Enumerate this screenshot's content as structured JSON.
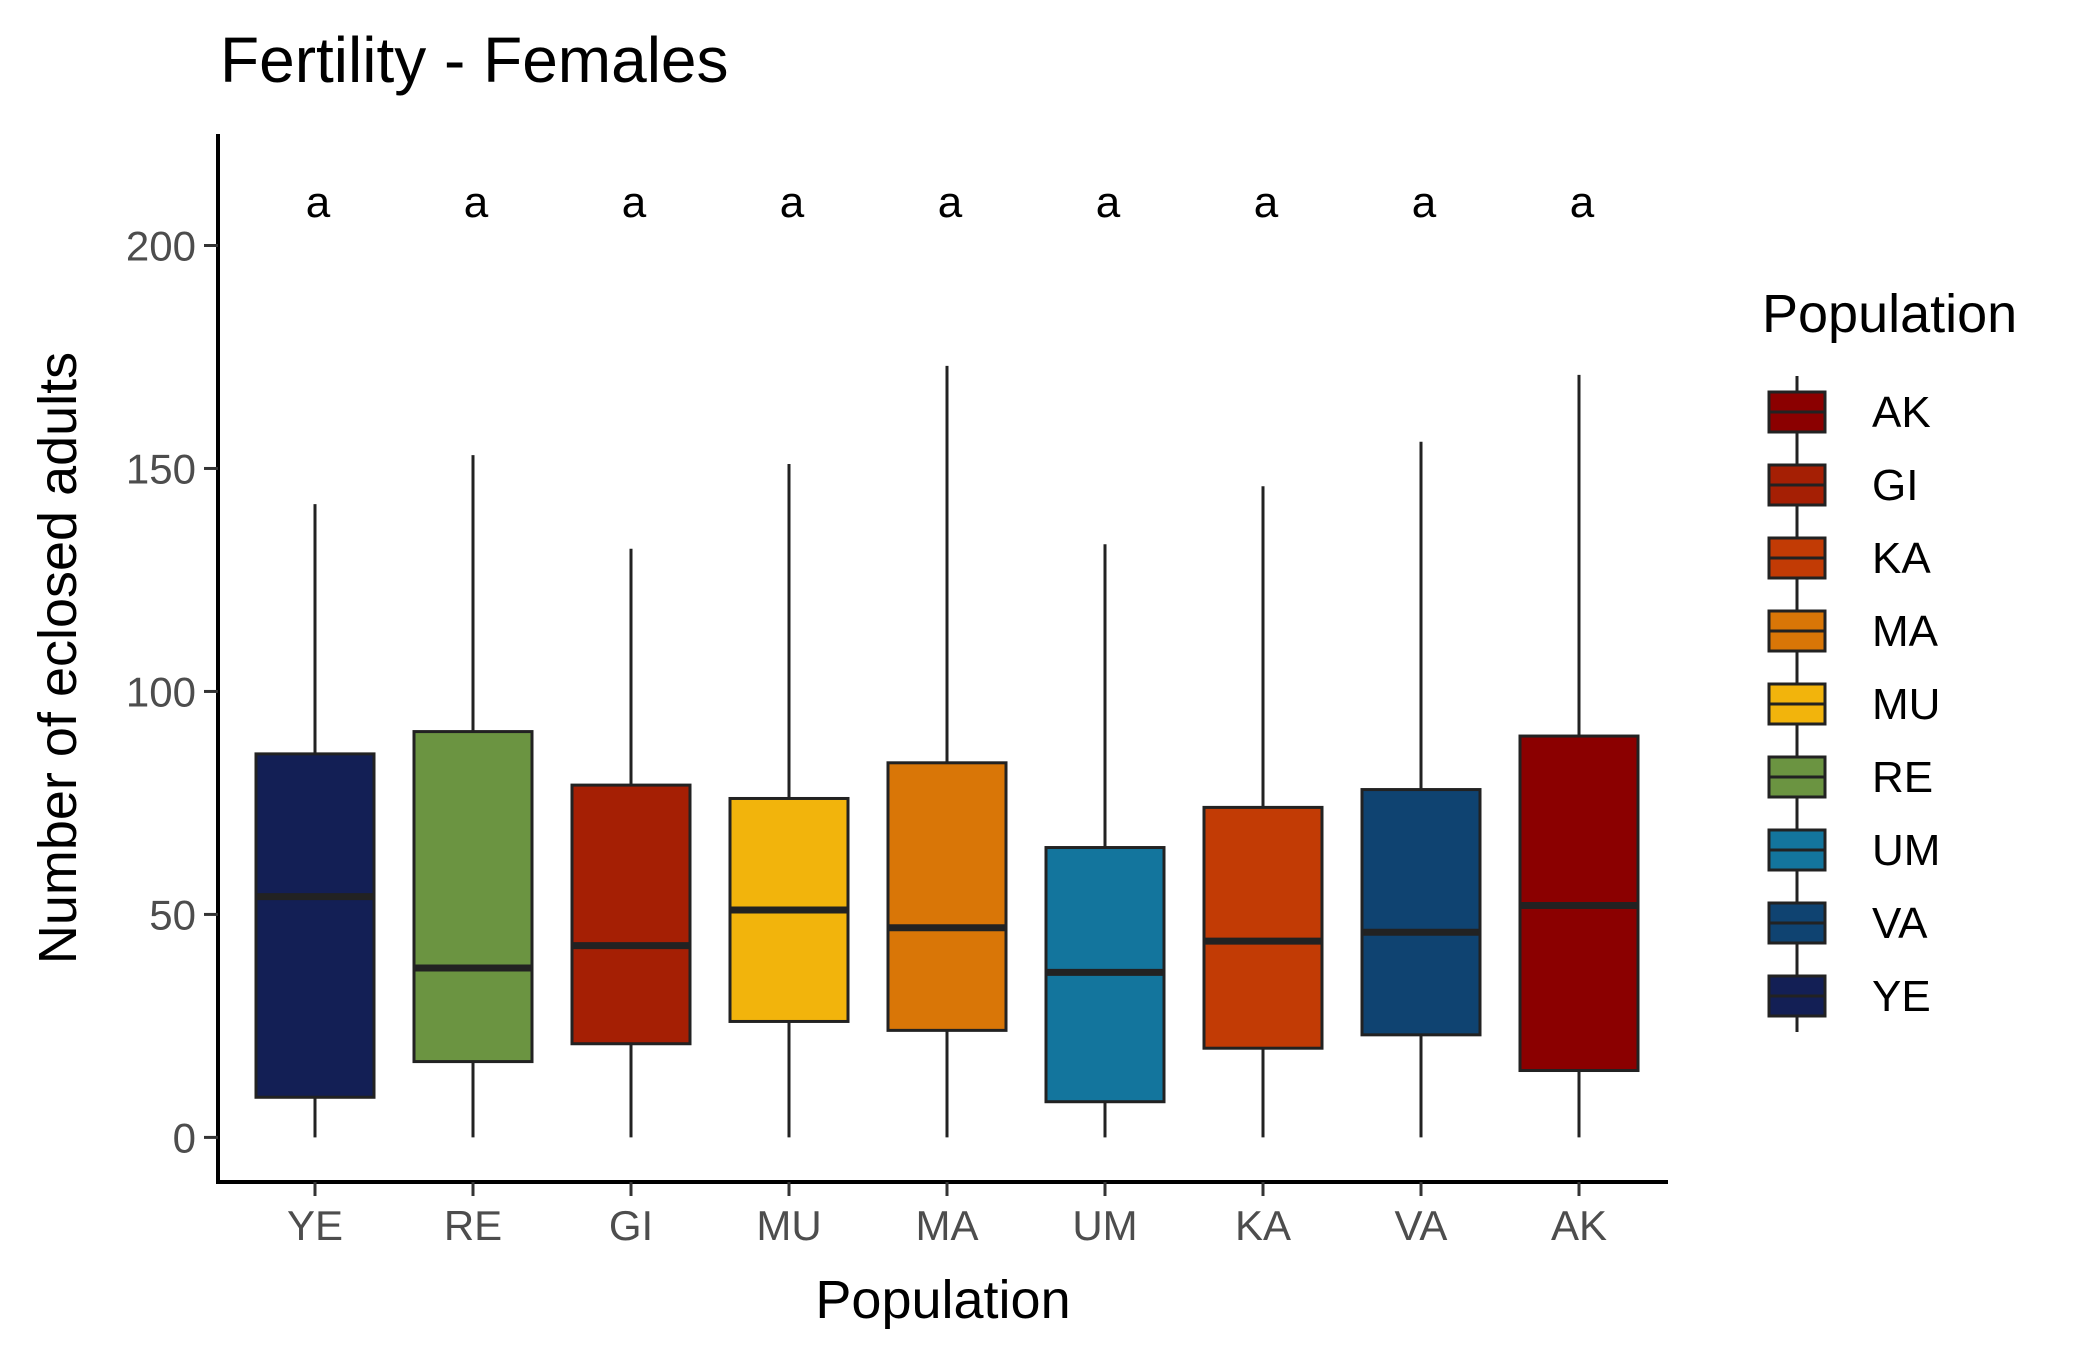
{
  "chart_data": {
    "type": "box",
    "title": "Fertility - Females",
    "xlabel": "Population",
    "ylabel": "Number of eclosed adults",
    "ylim": [
      -10,
      225
    ],
    "yticks": [
      0,
      50,
      100,
      150,
      200
    ],
    "grid": false,
    "legend": {
      "title": "Population",
      "placement": "right",
      "entries": [
        "AK",
        "GI",
        "KA",
        "MA",
        "MU",
        "RE",
        "UM",
        "VA",
        "YE"
      ]
    },
    "annotation_y": 210,
    "categories": [
      "YE",
      "RE",
      "GI",
      "MU",
      "MA",
      "UM",
      "KA",
      "VA",
      "AK"
    ],
    "boxes": [
      {
        "category": "YE",
        "min": 0,
        "q1": 9,
        "median": 54,
        "q3": 86,
        "max": 142,
        "color": "#131f55",
        "letter": "a"
      },
      {
        "category": "RE",
        "min": 0,
        "q1": 17,
        "median": 38,
        "q3": 91,
        "max": 153,
        "color": "#6b9441",
        "letter": "a"
      },
      {
        "category": "GI",
        "min": 0,
        "q1": 21,
        "median": 43,
        "q3": 79,
        "max": 132,
        "color": "#a51f04",
        "letter": "a"
      },
      {
        "category": "MU",
        "min": 0,
        "q1": 26,
        "median": 51,
        "q3": 76,
        "max": 151,
        "color": "#f2b40c",
        "letter": "a"
      },
      {
        "category": "MA",
        "min": 0,
        "q1": 24,
        "median": 47,
        "q3": 84,
        "max": 173,
        "color": "#d97607",
        "letter": "a"
      },
      {
        "category": "UM",
        "min": 0,
        "q1": 8,
        "median": 37,
        "q3": 65,
        "max": 133,
        "color": "#13759d",
        "letter": "a"
      },
      {
        "category": "KA",
        "min": 0,
        "q1": 20,
        "median": 44,
        "q3": 74,
        "max": 146,
        "color": "#c23b05",
        "letter": "a"
      },
      {
        "category": "VA",
        "min": 0,
        "q1": 23,
        "median": 46,
        "q3": 78,
        "max": 156,
        "color": "#0f4371",
        "letter": "a"
      },
      {
        "category": "AK",
        "min": 0,
        "q1": 15,
        "median": 52,
        "q3": 90,
        "max": 171,
        "color": "#8b0000",
        "letter": "a"
      }
    ]
  }
}
